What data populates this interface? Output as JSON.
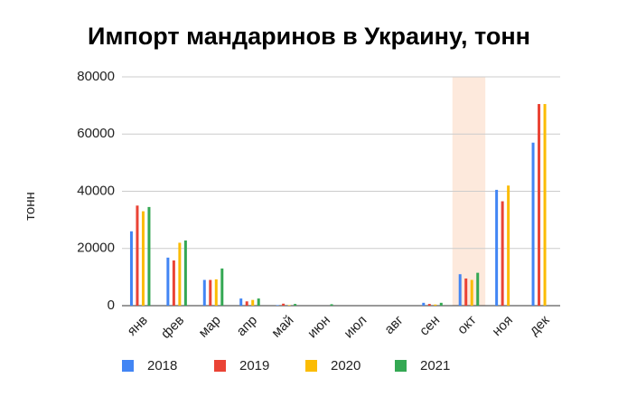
{
  "chart_data": {
    "type": "bar",
    "title": "Импорт мандаринов в Украину, тонн",
    "y_label": "тонн",
    "categories": [
      "янв",
      "фев",
      "мар",
      "апр",
      "май",
      "июн",
      "июл",
      "авг",
      "сен",
      "окт",
      "ноя",
      "дек"
    ],
    "series": [
      {
        "name": "2018",
        "color": "#4285f4",
        "values": [
          26000,
          16800,
          9000,
          2500,
          200,
          0,
          0,
          0,
          1000,
          11000,
          40500,
          57000
        ]
      },
      {
        "name": "2019",
        "color": "#ea4335",
        "values": [
          35000,
          15800,
          9000,
          1500,
          700,
          0,
          0,
          0,
          600,
          9500,
          36500,
          70500
        ]
      },
      {
        "name": "2020",
        "color": "#fbbc04",
        "values": [
          33000,
          22000,
          9200,
          2000,
          200,
          0,
          0,
          0,
          400,
          9000,
          42000,
          70500
        ]
      },
      {
        "name": "2021",
        "color": "#34a853",
        "values": [
          34500,
          22800,
          13000,
          2500,
          600,
          500,
          0,
          0,
          1000,
          11500,
          null,
          null
        ]
      }
    ],
    "highlight": "окт",
    "ylim": [
      0,
      80000
    ],
    "yticks": [
      0,
      20000,
      40000,
      60000,
      80000
    ],
    "grid": true,
    "legend": "bottom"
  }
}
